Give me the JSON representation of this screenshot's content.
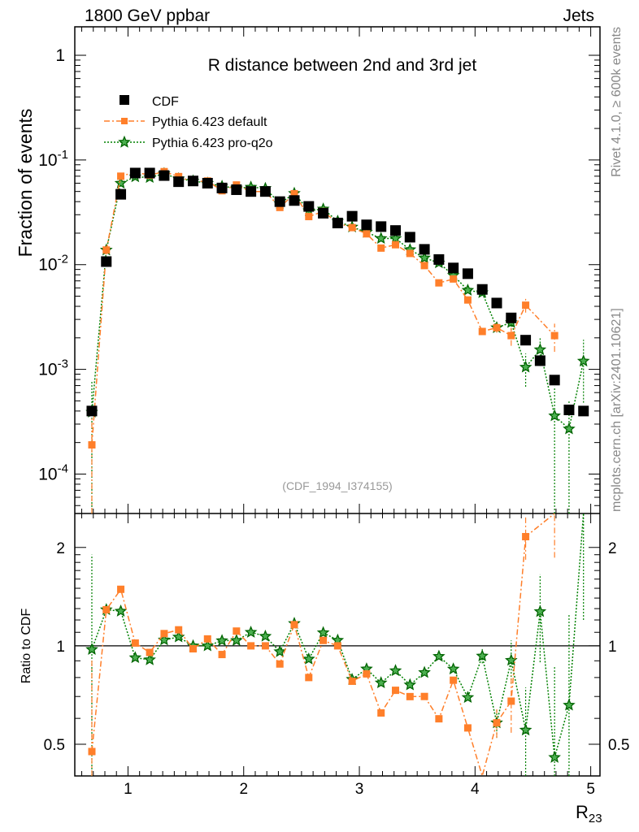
{
  "header": {
    "left": "1800 GeV ppbar",
    "right": "Jets"
  },
  "side_labels": {
    "top": "Rivet 4.1.0, ≥ 600k events",
    "bottom": "mcplots.cern.ch [arXiv:2401.10621]"
  },
  "analysis_id": "(CDF_1994_I374155)",
  "chart_data": {
    "type": "scatter",
    "title": "R distance between 2nd and 3rd jet",
    "xlabel": "R",
    "xlabel_sub": "23",
    "ylabel": "Fraction of events",
    "ratio_ylabel": "Ratio to CDF",
    "xlim": [
      0.54,
      5.08
    ],
    "ylim": [
      4.2e-05,
      1.87
    ],
    "yscale": "log",
    "ratio_ylim": [
      0.4,
      2.54
    ],
    "ratio_yscale": "log",
    "x_ticks": [
      1,
      2,
      3,
      4,
      5
    ],
    "x_tick_labels": [
      "1",
      "2",
      "3",
      "4",
      "5"
    ],
    "y_ticks": [
      1,
      0.1,
      0.01,
      0.001,
      0.0001
    ],
    "y_tick_labels": [
      "1",
      "10^-1",
      "10^-2",
      "10^-3",
      "10^-4"
    ],
    "ratio_ticks": [
      0.5,
      1,
      2
    ],
    "ratio_tick_labels": [
      "0.5",
      "1",
      "2"
    ],
    "legend_position": "top-left",
    "x": [
      0.6875,
      0.8125,
      0.9375,
      1.0625,
      1.1875,
      1.3125,
      1.4375,
      1.5625,
      1.6875,
      1.8125,
      1.9375,
      2.0625,
      2.1875,
      2.3125,
      2.4375,
      2.5625,
      2.6875,
      2.8125,
      2.9375,
      3.0625,
      3.1875,
      3.3125,
      3.4375,
      3.5625,
      3.6875,
      3.8125,
      3.9375,
      4.0625,
      4.1875,
      4.3125,
      4.4375,
      4.5625,
      4.6875,
      4.8125,
      4.9375
    ],
    "series": [
      {
        "name": "CDF",
        "color": "#000000",
        "marker": "square",
        "values": [
          0.0004,
          0.0107,
          0.047,
          0.075,
          0.075,
          0.071,
          0.062,
          0.063,
          0.06,
          0.054,
          0.052,
          0.05,
          0.05,
          0.04,
          0.041,
          0.036,
          0.031,
          0.025,
          0.029,
          0.024,
          0.0231,
          0.0212,
          0.0183,
          0.014,
          0.0112,
          0.0093,
          0.0082,
          0.0058,
          0.0043,
          0.0031,
          0.0019,
          0.00121,
          0.00079,
          0.00041,
          0.0004
        ],
        "rel_err": []
      },
      {
        "name": "Pythia 6.423 default",
        "color": "#ff7f2a",
        "marker": "square-small",
        "line": "dashdot",
        "values": [
          0.00019,
          0.0138,
          0.07,
          0.0765,
          0.0716,
          0.0774,
          0.0694,
          0.0617,
          0.063,
          0.0508,
          0.0577,
          0.05,
          0.05,
          0.0352,
          0.0476,
          0.0288,
          0.0322,
          0.025,
          0.0226,
          0.0197,
          0.0144,
          0.0155,
          0.0128,
          0.0098,
          0.0067,
          0.0073,
          0.0046,
          0.0023,
          0.0025,
          0.0021,
          0.0041,
          null,
          0.0021,
          null,
          null
        ],
        "rel_err": [
          0.9,
          0,
          0,
          0,
          0,
          0,
          0,
          0,
          0,
          0,
          0,
          0,
          0,
          0,
          0,
          0,
          0,
          0,
          0,
          0,
          0,
          0,
          0,
          0,
          0,
          0,
          0,
          0,
          0.1,
          0.2,
          0.15,
          0,
          0.3,
          0,
          0
        ]
      },
      {
        "name": "Pythia 6.423 pro-q2o",
        "color": "#008000",
        "marker": "star",
        "line": "dotted",
        "values": [
          0.00039,
          0.0138,
          0.06,
          0.069,
          0.068,
          0.074,
          0.066,
          0.063,
          0.06,
          0.056,
          0.054,
          0.055,
          0.0535,
          0.0384,
          0.048,
          0.0328,
          0.034,
          0.026,
          0.0229,
          0.0204,
          0.0178,
          0.0178,
          0.0139,
          0.0116,
          0.0104,
          0.0079,
          0.0057,
          0.0054,
          0.0025,
          0.0028,
          0.00105,
          0.00154,
          0.00036,
          0.00027,
          0.0012
        ],
        "rel_err": [
          0.95,
          0,
          0,
          0,
          0,
          0,
          0,
          0,
          0,
          0,
          0,
          0,
          0,
          0,
          0,
          0,
          0,
          0,
          0,
          0,
          0,
          0,
          0,
          0,
          0,
          0,
          0,
          0.05,
          0.1,
          0.15,
          0.35,
          0.3,
          0.9,
          0.9,
          0.6
        ]
      }
    ]
  }
}
